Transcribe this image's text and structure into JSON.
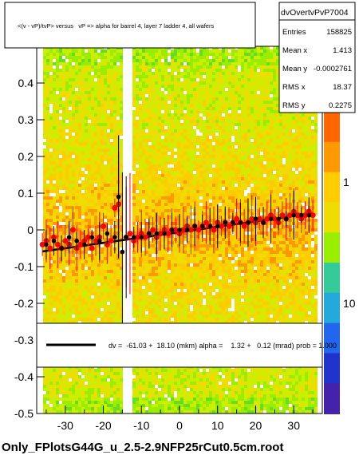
{
  "chart_data": {
    "type": "scatter",
    "title": "<(v - vP)/tvP> versus   vP => alpha for barrel 4, layer 7 ladder 4, all wafers",
    "xlabel": "",
    "ylabel": "",
    "xlim": [
      -37.5,
      37.5
    ],
    "ylim": [
      -0.5,
      0.5
    ],
    "x_ticks": [
      -30,
      -20,
      -10,
      0,
      10,
      20,
      30
    ],
    "y_ticks": [
      -0.5,
      -0.4,
      -0.3,
      -0.2,
      -0.1,
      0,
      0.1,
      0.2,
      0.3,
      0.4
    ],
    "y_tick_labels": [
      "-0.5",
      "-0.4",
      "-0.3",
      "-0.2",
      "-0.1",
      "0",
      "0.1",
      "0.2",
      "0.3",
      "0.4"
    ],
    "colorbar_labels": [
      "1",
      "10"
    ],
    "stats": {
      "name": "dvOvertvPvP7004",
      "rows": [
        {
          "label": "Entries",
          "value": "158825"
        },
        {
          "label": "Mean x",
          "value": "1.413"
        },
        {
          "label": "Mean y",
          "value": "-0.0002761"
        },
        {
          "label": "RMS x",
          "value": "18.37"
        },
        {
          "label": "RMS y",
          "value": "0.2275"
        }
      ]
    },
    "fit": {
      "legend_text": "dv =  -61.03 +  18.10 (mkm) alpha =    1.32 +   0.12 (mrad) prob = 1.000",
      "intercept": -0.0061,
      "slope_per_unit_x": 0.00132
    },
    "series": [
      {
        "color": "#ff0000",
        "x": [
          -36,
          -35,
          -34,
          -33,
          -32,
          -31,
          -30,
          -29,
          -28,
          -27,
          -26,
          -25,
          -24,
          -23,
          -22,
          -21,
          -20,
          -19,
          -18,
          -17,
          -16,
          -14,
          -13,
          -12,
          -11,
          -10,
          -9,
          -8,
          -7,
          -6,
          -5,
          -4,
          -3,
          -2,
          -1,
          0,
          1,
          2,
          3,
          4,
          5,
          6,
          7,
          8,
          9,
          10,
          11,
          12,
          13,
          14,
          15,
          16,
          17,
          18,
          19,
          20,
          21,
          22,
          23,
          24,
          25,
          26,
          27,
          28,
          29,
          30,
          31,
          32,
          33,
          34,
          35
        ],
        "y": [
          -0.04,
          -0.03,
          -0.05,
          -0.02,
          -0.04,
          -0.05,
          -0.03,
          -0.04,
          0.0,
          -0.05,
          -0.04,
          -0.03,
          -0.02,
          -0.05,
          -0.03,
          -0.02,
          0.01,
          -0.04,
          -0.03,
          0.06,
          0.07,
          -0.02,
          -0.01,
          -0.03,
          -0.02,
          -0.01,
          -0.02,
          -0.01,
          0.0,
          -0.02,
          -0.01,
          0.0,
          -0.01,
          0.0,
          0.0,
          -0.01,
          0.0,
          0.01,
          0.0,
          0.01,
          0.0,
          0.01,
          0.02,
          0.01,
          0.0,
          0.02,
          0.01,
          0.02,
          0.01,
          0.02,
          0.03,
          0.02,
          0.01,
          0.02,
          0.03,
          0.02,
          0.03,
          0.02,
          0.03,
          0.04,
          0.03,
          0.02,
          0.04,
          0.03,
          0.04,
          0.05,
          0.04,
          0.03,
          0.04,
          0.05,
          0.04
        ]
      },
      {
        "color": "#000000",
        "x": [
          -35,
          -33,
          -31,
          -29,
          -27,
          -25,
          -23,
          -21,
          -19,
          -17,
          -16,
          -15,
          -14,
          -12,
          -10,
          -8,
          -6,
          -4,
          -2,
          0,
          2,
          4,
          6,
          8,
          10,
          12,
          14,
          16,
          18,
          20,
          22,
          24,
          26,
          28,
          30,
          32,
          34
        ],
        "y": [
          -0.04,
          -0.03,
          -0.05,
          -0.02,
          -0.03,
          -0.04,
          -0.02,
          -0.03,
          -0.01,
          -0.02,
          0.09,
          -0.06,
          -0.02,
          -0.02,
          -0.02,
          -0.01,
          -0.01,
          -0.01,
          0.0,
          0.0,
          0.0,
          0.01,
          0.01,
          0.01,
          0.01,
          0.02,
          0.02,
          0.02,
          0.02,
          0.03,
          0.02,
          0.03,
          0.03,
          0.03,
          0.04,
          0.04,
          0.04
        ]
      }
    ]
  },
  "footer": "Only_FPlotsG44G_u_2.5-2.9NFP25rCut0.5cm.root"
}
